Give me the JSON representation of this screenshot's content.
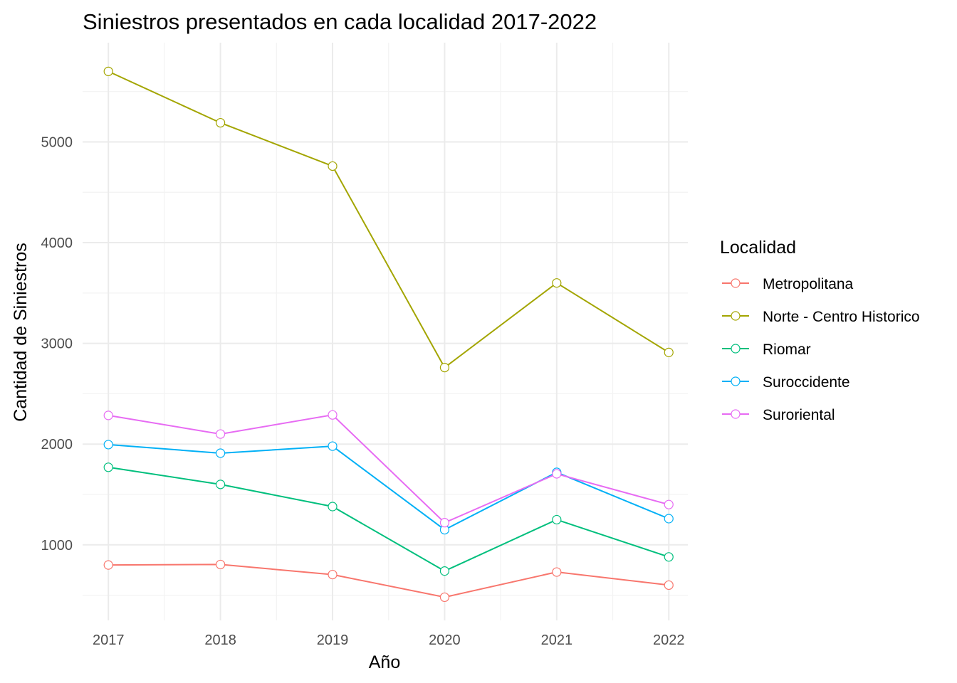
{
  "chart_data": {
    "type": "line",
    "title": "Siniestros presentados en cada localidad 2017-2022",
    "xlabel": "Año",
    "ylabel": "Cantidad de Siniestros",
    "x": [
      2017,
      2018,
      2019,
      2020,
      2021,
      2022
    ],
    "x_ticks": [
      "2017",
      "2018",
      "2019",
      "2020",
      "2021",
      "2022"
    ],
    "y_ticks": [
      "1000",
      "2000",
      "3000",
      "4000",
      "5000"
    ],
    "xlim": [
      2016.77,
      2022.17
    ],
    "ylim": [
      250,
      5985
    ],
    "grid": true,
    "legend": {
      "title": "Localidad",
      "position": "right"
    },
    "series": [
      {
        "name": "Metropolitana",
        "color": "#F8766D",
        "values": [
          800,
          805,
          705,
          480,
          730,
          600
        ]
      },
      {
        "name": "Norte - Centro Historico",
        "color": "#A3A500",
        "values": [
          5700,
          5190,
          4760,
          2760,
          3600,
          2910
        ]
      },
      {
        "name": "Riomar",
        "color": "#00BF7D",
        "values": [
          1770,
          1600,
          1380,
          740,
          1250,
          880
        ]
      },
      {
        "name": "Suroccidente",
        "color": "#00B0F6",
        "values": [
          1995,
          1910,
          1980,
          1150,
          1720,
          1260
        ]
      },
      {
        "name": "Suroriental",
        "color": "#E76BF3",
        "values": [
          2285,
          2100,
          2290,
          1220,
          1705,
          1400
        ]
      }
    ]
  }
}
